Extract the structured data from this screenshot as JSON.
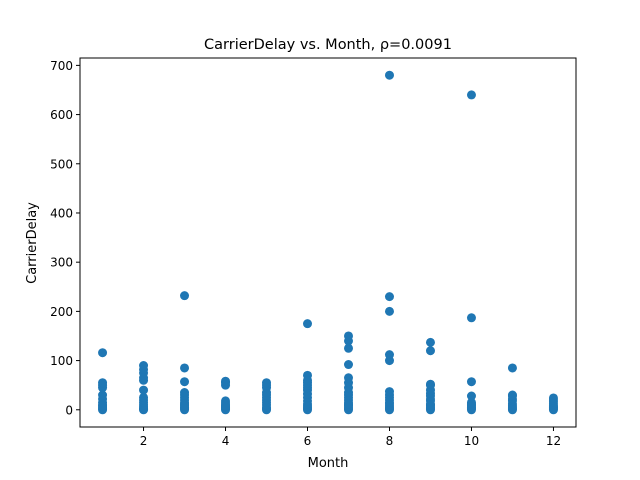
{
  "chart_data": {
    "type": "scatter",
    "title": "CarrierDelay vs. Month, ρ=0.0091",
    "xlabel": "Month",
    "ylabel": "CarrierDelay",
    "xlim": [
      0.45,
      12.55
    ],
    "ylim": [
      -35,
      715
    ],
    "xticks": [
      2,
      4,
      6,
      8,
      10,
      12
    ],
    "yticks": [
      0,
      100,
      200,
      300,
      400,
      500,
      600,
      700
    ],
    "grid": false,
    "marker_color": "#1f77b4",
    "series": [
      {
        "x": [
          1,
          1,
          1,
          1,
          1,
          1,
          1,
          1,
          1,
          1,
          1,
          1,
          2,
          2,
          2,
          2,
          2,
          2,
          2,
          2,
          2,
          2,
          2,
          2,
          2,
          2,
          3,
          3,
          3,
          3,
          3,
          3,
          3,
          3,
          3,
          3,
          3,
          3,
          3,
          3,
          3,
          4,
          4,
          4,
          4,
          4,
          4,
          4,
          4,
          4,
          4,
          4,
          5,
          5,
          5,
          5,
          5,
          5,
          5,
          5,
          5,
          5,
          5,
          5,
          6,
          6,
          6,
          6,
          6,
          6,
          6,
          6,
          6,
          6,
          6,
          6,
          6,
          6,
          6,
          7,
          7,
          7,
          7,
          7,
          7,
          7,
          7,
          7,
          7,
          7,
          7,
          7,
          7,
          7,
          7,
          7,
          7,
          8,
          8,
          8,
          8,
          8,
          8,
          8,
          8,
          8,
          8,
          8,
          8,
          8,
          8,
          8,
          9,
          9,
          9,
          9,
          9,
          9,
          9,
          9,
          9,
          9,
          9,
          9,
          9,
          9,
          9,
          10,
          10,
          10,
          10,
          10,
          10,
          10,
          10,
          10,
          10,
          10,
          10,
          11,
          11,
          11,
          11,
          11,
          11,
          11,
          11,
          11,
          11,
          12,
          12,
          12,
          12,
          12,
          12,
          12,
          12,
          12
        ],
        "y": [
          0,
          2,
          5,
          10,
          15,
          22,
          30,
          45,
          50,
          55,
          116,
          8,
          0,
          1,
          3,
          6,
          10,
          15,
          20,
          25,
          60,
          65,
          75,
          82,
          90,
          40,
          0,
          2,
          5,
          10,
          15,
          20,
          25,
          30,
          35,
          57,
          85,
          232,
          12,
          4,
          8,
          0,
          2,
          4,
          6,
          10,
          14,
          18,
          50,
          55,
          58,
          8,
          0,
          2,
          5,
          10,
          15,
          20,
          25,
          30,
          35,
          45,
          50,
          55,
          0,
          2,
          5,
          8,
          12,
          18,
          25,
          32,
          40,
          45,
          50,
          55,
          70,
          175,
          60,
          0,
          2,
          5,
          10,
          15,
          20,
          25,
          30,
          35,
          45,
          55,
          65,
          92,
          125,
          140,
          150,
          8,
          12,
          0,
          2,
          5,
          8,
          12,
          20,
          25,
          30,
          37,
          100,
          112,
          200,
          230,
          680,
          15,
          0,
          2,
          5,
          8,
          12,
          18,
          22,
          28,
          33,
          40,
          50,
          52,
          120,
          137,
          10,
          0,
          2,
          5,
          8,
          10,
          15,
          28,
          57,
          187,
          640,
          4,
          12,
          0,
          2,
          5,
          8,
          12,
          18,
          22,
          28,
          30,
          85,
          0,
          2,
          4,
          6,
          8,
          12,
          16,
          20,
          24
        ]
      }
    ]
  }
}
